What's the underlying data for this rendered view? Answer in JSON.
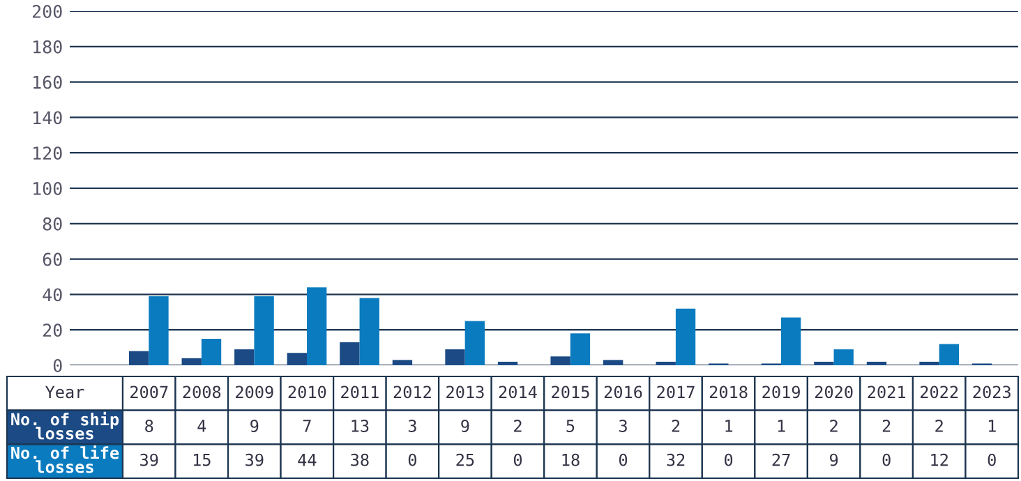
{
  "chart_data": {
    "type": "bar",
    "xlabel": "Year",
    "categories": [
      "2007",
      "2008",
      "2009",
      "2010",
      "2011",
      "2012",
      "2013",
      "2014",
      "2015",
      "2016",
      "2017",
      "2018",
      "2019",
      "2020",
      "2021",
      "2022",
      "2023"
    ],
    "series": [
      {
        "name": "No. of ship losses",
        "color": "#1b4a84",
        "values": [
          8,
          4,
          9,
          7,
          13,
          3,
          9,
          2,
          5,
          3,
          2,
          1,
          1,
          2,
          2,
          2,
          1
        ]
      },
      {
        "name": "No. of life losses",
        "color": "#0a7bbf",
        "values": [
          39,
          15,
          39,
          44,
          38,
          0,
          25,
          0,
          18,
          0,
          32,
          0,
          27,
          9,
          0,
          12,
          0
        ]
      }
    ],
    "ylim": [
      0,
      200
    ],
    "yticks": [
      0,
      20,
      40,
      60,
      80,
      100,
      120,
      140,
      160,
      180,
      200
    ],
    "grid": "y",
    "data_labels": true
  }
}
